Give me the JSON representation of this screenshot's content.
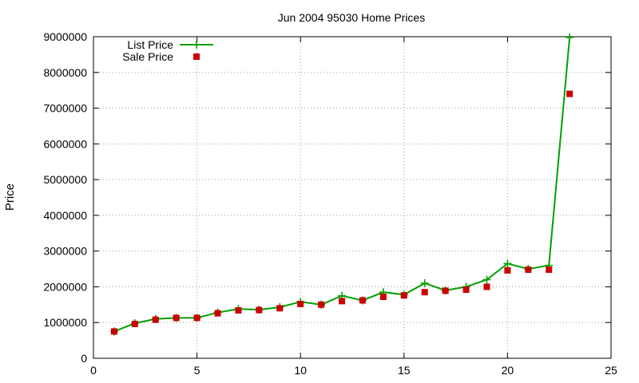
{
  "chart_data": {
    "type": "line",
    "title": "Jun 2004 95030 Home Prices",
    "xlabel": "",
    "ylabel": "Price",
    "xlim": [
      0,
      25
    ],
    "ylim": [
      0,
      9000000
    ],
    "xticks": [
      0,
      5,
      10,
      15,
      20,
      25
    ],
    "yticks": [
      0,
      1000000,
      2000000,
      3000000,
      4000000,
      5000000,
      6000000,
      7000000,
      8000000,
      9000000
    ],
    "grid": true,
    "legend_position": "top-left",
    "x": [
      1,
      2,
      3,
      4,
      5,
      6,
      7,
      8,
      9,
      10,
      11,
      12,
      13,
      14,
      15,
      16,
      17,
      18,
      19,
      20,
      21,
      22,
      23
    ],
    "series": [
      {
        "name": "List Price",
        "style": "line-plus",
        "color": "#00a000",
        "values": [
          750000,
          980000,
          1100000,
          1130000,
          1130000,
          1280000,
          1380000,
          1360000,
          1430000,
          1580000,
          1500000,
          1750000,
          1620000,
          1850000,
          1780000,
          2100000,
          1900000,
          2000000,
          2200000,
          2650000,
          2500000,
          2600000,
          8980000
        ]
      },
      {
        "name": "Sale Price",
        "style": "square",
        "color": "#cc0000",
        "values": [
          750000,
          960000,
          1080000,
          1130000,
          1130000,
          1260000,
          1340000,
          1350000,
          1400000,
          1520000,
          1500000,
          1600000,
          1620000,
          1720000,
          1760000,
          1850000,
          1890000,
          1920000,
          2000000,
          2460000,
          2480000,
          2480000,
          7400000
        ]
      }
    ]
  }
}
